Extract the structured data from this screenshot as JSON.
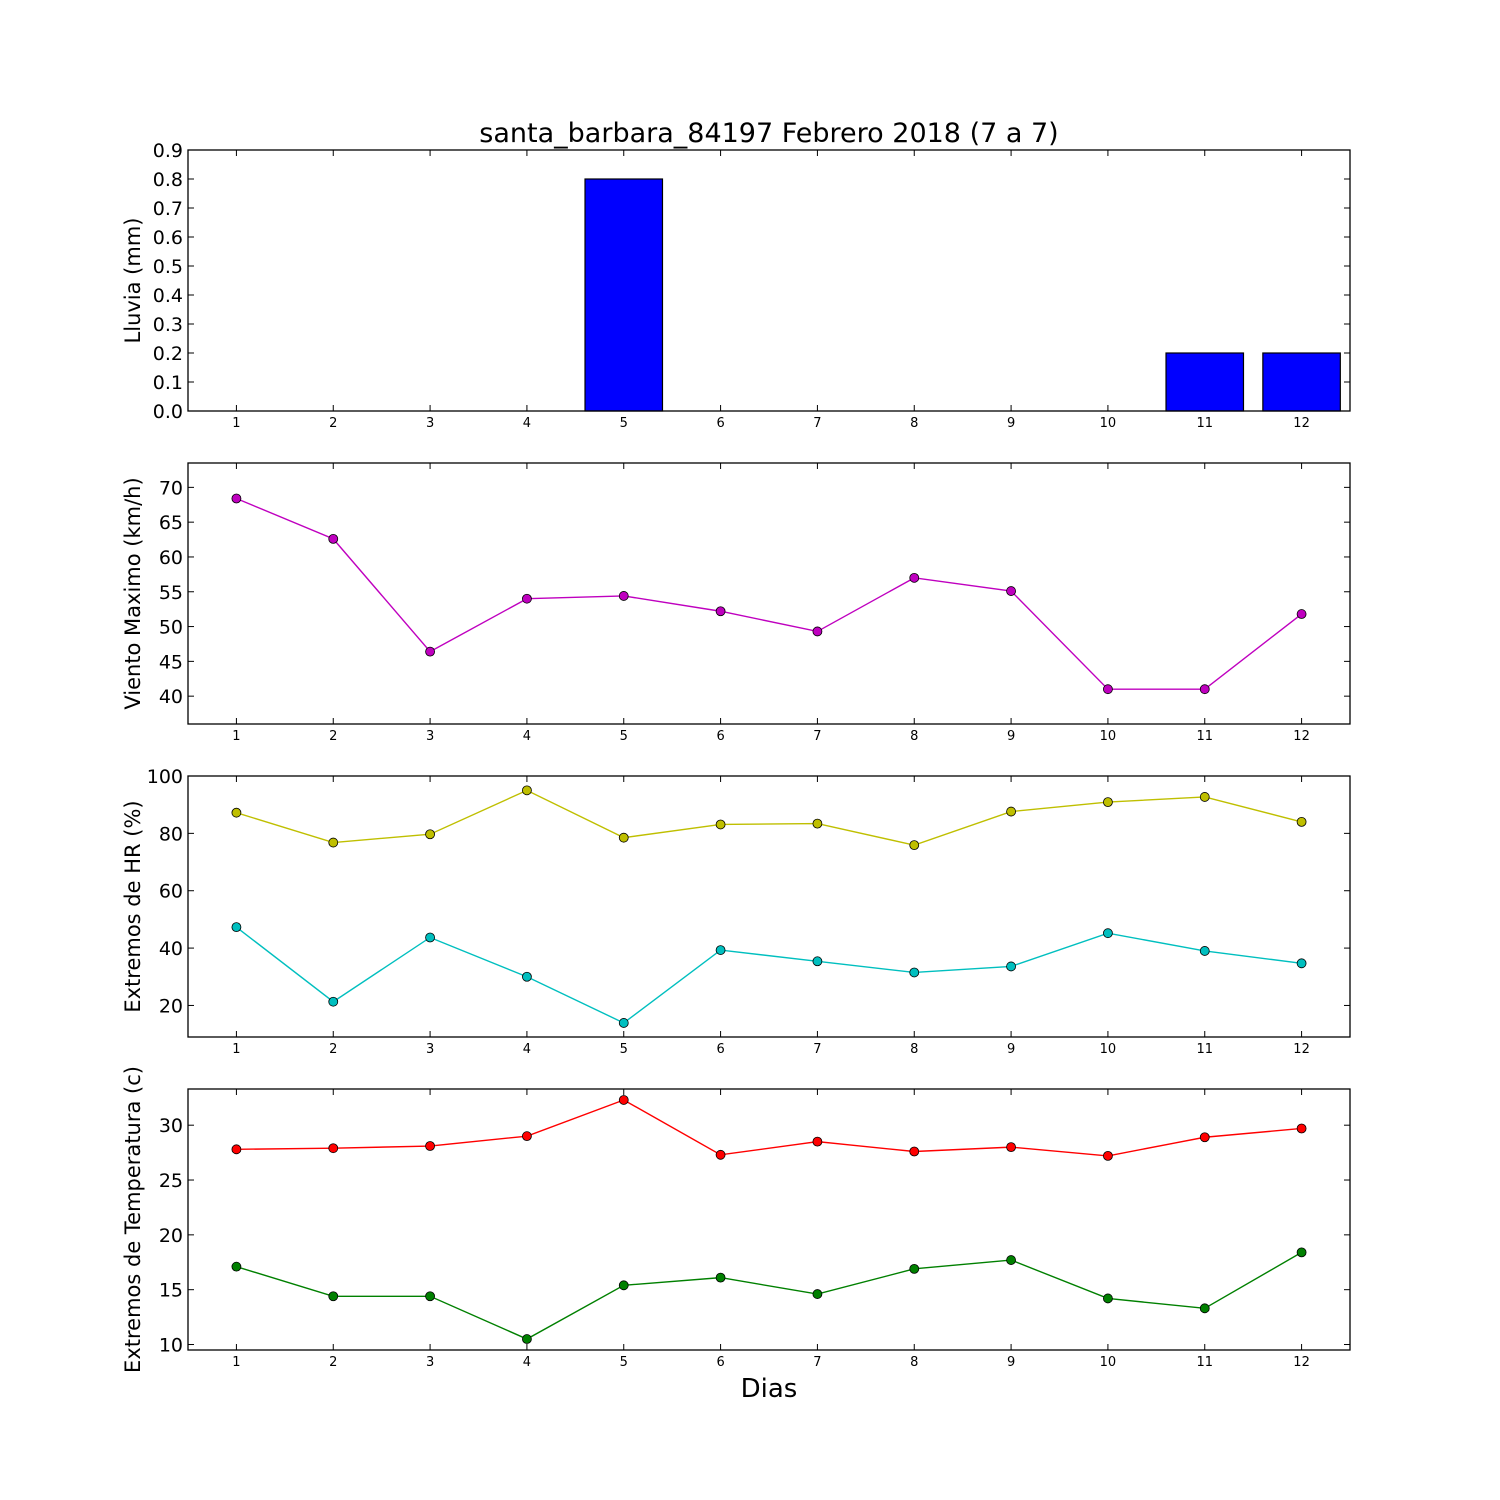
{
  "title": "santa_barbara_84197 Febrero 2018  (7 a 7)",
  "xlabel": "Dias",
  "chart_data": [
    {
      "type": "bar",
      "ylabel": "Lluvia (mm)",
      "categories": [
        "1",
        "2",
        "3",
        "4",
        "5",
        "6",
        "7",
        "8",
        "9",
        "10",
        "11",
        "12"
      ],
      "ylim": [
        0,
        0.9
      ],
      "yticks": [
        "0.0",
        "0.1",
        "0.2",
        "0.3",
        "0.4",
        "0.5",
        "0.6",
        "0.7",
        "0.8",
        "0.9"
      ],
      "series": [
        {
          "color": "#0000ff",
          "values": [
            0,
            0,
            0,
            0,
            0.8,
            0,
            0,
            0,
            0,
            0,
            0.2,
            0.2
          ]
        }
      ]
    },
    {
      "type": "line",
      "ylabel": "Viento Maximo (km/h)",
      "categories": [
        "1",
        "2",
        "3",
        "4",
        "5",
        "6",
        "7",
        "8",
        "9",
        "10",
        "11",
        "12"
      ],
      "ylim": [
        36,
        73.5
      ],
      "yticks": [
        "40",
        "45",
        "50",
        "55",
        "60",
        "65",
        "70"
      ],
      "series": [
        {
          "color": "#bf00bf",
          "values": [
            68.4,
            62.6,
            46.4,
            54.0,
            54.4,
            52.2,
            49.3,
            57.0,
            55.1,
            41.0,
            41.0,
            51.8
          ]
        }
      ]
    },
    {
      "type": "line",
      "ylabel": "Extremos de HR (%)",
      "categories": [
        "1",
        "2",
        "3",
        "4",
        "5",
        "6",
        "7",
        "8",
        "9",
        "10",
        "11",
        "12"
      ],
      "ylim": [
        9,
        100
      ],
      "yticks": [
        "20",
        "40",
        "60",
        "80",
        "100"
      ],
      "series": [
        {
          "color": "#bfbf00",
          "values": [
            87.2,
            76.8,
            79.7,
            95.0,
            78.5,
            83.1,
            83.4,
            75.9,
            87.6,
            90.9,
            92.7,
            84.0
          ]
        },
        {
          "color": "#00bfbf",
          "values": [
            47.3,
            21.3,
            43.7,
            30.0,
            13.9,
            39.3,
            35.4,
            31.5,
            33.6,
            45.2,
            39.0,
            34.7
          ]
        }
      ]
    },
    {
      "type": "line",
      "ylabel": "Extremos de Temperatura (c)",
      "categories": [
        "1",
        "2",
        "3",
        "4",
        "5",
        "6",
        "7",
        "8",
        "9",
        "10",
        "11",
        "12"
      ],
      "ylim": [
        9.5,
        33.3
      ],
      "yticks": [
        "10",
        "15",
        "20",
        "25",
        "30"
      ],
      "series": [
        {
          "color": "#ff0000",
          "values": [
            27.8,
            27.9,
            28.1,
            29.0,
            32.3,
            27.3,
            28.5,
            27.6,
            28.0,
            27.2,
            28.9,
            29.7
          ]
        },
        {
          "color": "#008000",
          "values": [
            17.1,
            14.4,
            14.4,
            10.5,
            15.4,
            16.1,
            14.6,
            16.9,
            17.7,
            14.2,
            13.3,
            18.4
          ]
        }
      ]
    }
  ]
}
